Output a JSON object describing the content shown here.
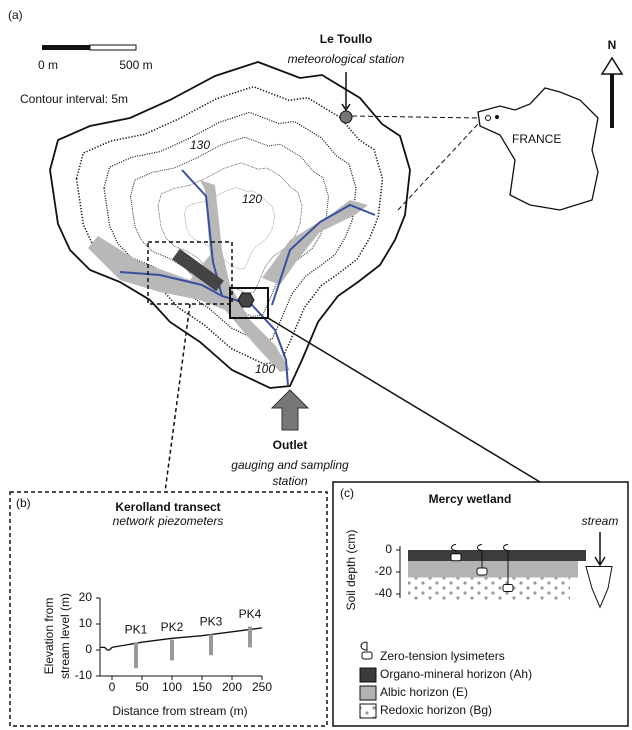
{
  "panel_a": {
    "label": "(a)",
    "scale_bar": {
      "start": "0 m",
      "end": "500 m"
    },
    "contour_interval": "Contour interval: 5m",
    "station": {
      "name": "Le Toullo",
      "description": "meteorological station"
    },
    "contour_labels": [
      "130",
      "120",
      "100"
    ],
    "outlet": {
      "name": "Outlet",
      "description": [
        "gauging and sampling",
        "station"
      ]
    },
    "north": "N",
    "country": "FRANCE"
  },
  "panel_b": {
    "label": "(b)",
    "title": "Kerolland transect",
    "subtitle": "network piezometers",
    "xlabel": "Distance from stream (m)",
    "ylabel": [
      "Elevation from",
      "stream level (m)"
    ],
    "xlim": [
      -20,
      250
    ],
    "ylim": [
      -10,
      20
    ],
    "xticks": [
      0,
      50,
      100,
      150,
      200,
      250
    ],
    "yticks": [
      -10,
      0,
      10,
      20
    ],
    "ground": {
      "x": [
        -20,
        -12,
        -8,
        -4,
        0,
        50,
        100,
        150,
        200,
        250
      ],
      "y": [
        1,
        1,
        0,
        0,
        1,
        3,
        4.5,
        5.5,
        7,
        8.5
      ]
    },
    "piezometers": [
      {
        "name": "PK1",
        "x": 40,
        "top": 3,
        "bottom": -7
      },
      {
        "name": "PK2",
        "x": 100,
        "top": 4,
        "bottom": -4
      },
      {
        "name": "PK3",
        "x": 165,
        "top": 6,
        "bottom": -2
      },
      {
        "name": "PK4",
        "x": 230,
        "top": 9,
        "bottom": 1
      }
    ]
  },
  "panel_c": {
    "label": "(c)",
    "title": "Mercy wetland",
    "ylabel": "Soil depth (cm)",
    "stream": "stream",
    "ylim": [
      -50,
      5
    ],
    "yticks": [
      0,
      -20,
      -40
    ],
    "lysimeter_legend": "Zero-tension lysimeters",
    "lysimeter_depths": [
      -7,
      -20,
      -35
    ],
    "horizons": [
      {
        "name": "Organo-mineral horizon (Ah)",
        "top": 0,
        "bottom": -10,
        "color": "#3c3c3c"
      },
      {
        "name": "Albic horizon (E)",
        "top": -10,
        "bottom": -25,
        "color": "#b3b3b3"
      },
      {
        "name": "Redoxic horizon (Bg)",
        "top": -25,
        "bottom": -45,
        "color": "#ffffff"
      }
    ]
  }
}
